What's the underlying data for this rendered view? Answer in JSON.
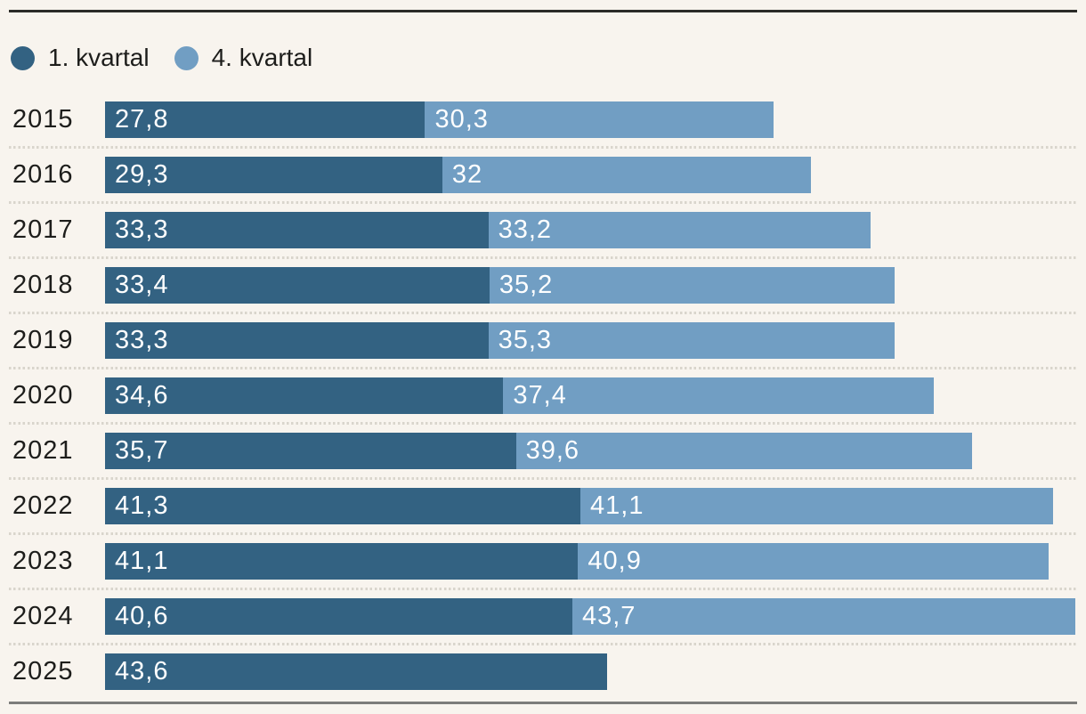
{
  "chart_data": {
    "type": "bar",
    "orientation": "horizontal",
    "stacked": true,
    "title": "",
    "categories": [
      "2015",
      "2016",
      "2017",
      "2018",
      "2019",
      "2020",
      "2021",
      "2022",
      "2023",
      "2024",
      "2025"
    ],
    "series": [
      {
        "name": "1. kvartal",
        "color": "#336282",
        "values": [
          27.8,
          29.3,
          33.3,
          33.4,
          33.3,
          34.6,
          35.7,
          41.3,
          41.1,
          40.6,
          43.6
        ],
        "labels": [
          "27,8",
          "29,3",
          "33,3",
          "33,4",
          "33,3",
          "34,6",
          "35,7",
          "41,3",
          "41,1",
          "40,6",
          "43,6"
        ]
      },
      {
        "name": "4. kvartal",
        "color": "#719ec3",
        "values": [
          30.3,
          32,
          33.2,
          35.2,
          35.3,
          37.4,
          39.6,
          41.1,
          40.9,
          43.7,
          null
        ],
        "labels": [
          "30,3",
          "32",
          "33,2",
          "35,2",
          "35,3",
          "37,4",
          "39,6",
          "41,1",
          "40,9",
          "43,7",
          null
        ]
      }
    ],
    "xmin": 0,
    "xmax": 84.3,
    "legend_position": "top-left",
    "row_separators": "dotted",
    "value_labels": "inside-start"
  },
  "style": {
    "background": "#f8f4ee",
    "top_rule_color": "#2b2b28",
    "bottom_rule_color": "#7d7d7b",
    "separator_color": "#d9d5cc",
    "text_color": "#1d1d1b",
    "value_label_color": "#ffffff"
  }
}
